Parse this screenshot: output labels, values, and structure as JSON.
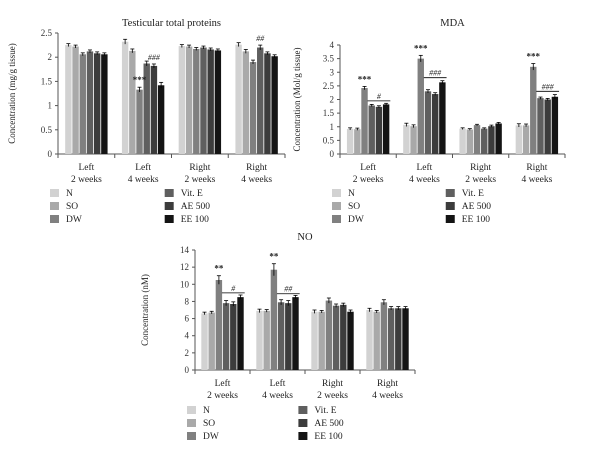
{
  "figure": {
    "series_names": [
      "N",
      "SO",
      "DW",
      "Vit. E",
      "AE 500",
      "EE 100"
    ],
    "colors": {
      "N": "#d2d2d2",
      "SO": "#a9a9a9",
      "DW": "#808080",
      "Vit. E": "#5f5f5f",
      "AE 500": "#3c3c3c",
      "EE 100": "#141414"
    }
  },
  "chart_data": [
    {
      "type": "bar",
      "title": "Testicular total proteins",
      "ylabel": "Concentration (mg/g tissue)",
      "ylim": [
        0,
        2.5
      ],
      "yticks": [
        "0",
        "0.5",
        "1",
        "1.5",
        "2",
        "2.5"
      ],
      "categories": [
        "Left\n2 weeks",
        "Left\n4 weeks",
        "Right\n2 weeks",
        "Right\n4 weeks"
      ],
      "series": [
        {
          "name": "N",
          "values": [
            2.25,
            2.32,
            2.23,
            2.26
          ],
          "errors": [
            0.03,
            0.05,
            0.03,
            0.04
          ]
        },
        {
          "name": "SO",
          "values": [
            2.22,
            2.13,
            2.22,
            2.12
          ],
          "errors": [
            0.03,
            0.04,
            0.03,
            0.04
          ]
        },
        {
          "name": "DW",
          "values": [
            2.06,
            1.33,
            2.17,
            1.9
          ],
          "errors": [
            0.03,
            0.05,
            0.03,
            0.04
          ]
        },
        {
          "name": "Vit. E",
          "values": [
            2.12,
            1.87,
            2.2,
            2.2
          ],
          "errors": [
            0.03,
            0.05,
            0.03,
            0.05
          ]
        },
        {
          "name": "AE 500",
          "values": [
            2.08,
            1.82,
            2.16,
            2.08
          ],
          "errors": [
            0.03,
            0.04,
            0.03,
            0.03
          ]
        },
        {
          "name": "EE 100",
          "values": [
            2.06,
            1.42,
            2.14,
            2.02
          ],
          "errors": [
            0.03,
            0.06,
            0.03,
            0.03
          ]
        }
      ],
      "annotations": [
        {
          "text": "***",
          "category": 1,
          "series": 2
        },
        {
          "text": "###",
          "category": 1,
          "series": 4
        },
        {
          "text": "##",
          "category": 3,
          "series": 3
        }
      ]
    },
    {
      "type": "bar",
      "title": "MDA",
      "ylabel": "Concentration (Mol/g tissue)",
      "ylim": [
        0,
        4
      ],
      "yticks": [
        "0",
        "0.5",
        "1",
        "1.5",
        "2",
        "2.5",
        "3",
        "3.5",
        "4"
      ],
      "categories": [
        "Left\n2 weeks",
        "Left\n4 weeks",
        "Right\n2 weeks",
        "Right\n4 weeks"
      ],
      "series": [
        {
          "name": "N",
          "values": [
            0.92,
            1.07,
            0.93,
            1.05
          ],
          "errors": [
            0.04,
            0.06,
            0.03,
            0.06
          ]
        },
        {
          "name": "SO",
          "values": [
            0.91,
            1.02,
            0.9,
            1.05
          ],
          "errors": [
            0.04,
            0.05,
            0.03,
            0.05
          ]
        },
        {
          "name": "DW",
          "values": [
            2.42,
            3.5,
            1.06,
            3.2
          ],
          "errors": [
            0.06,
            0.12,
            0.03,
            0.12
          ]
        },
        {
          "name": "Vit. E",
          "values": [
            1.78,
            2.3,
            0.93,
            2.05
          ],
          "errors": [
            0.04,
            0.06,
            0.03,
            0.04
          ]
        },
        {
          "name": "AE 500",
          "values": [
            1.73,
            2.2,
            1.02,
            2.0
          ],
          "errors": [
            0.04,
            0.05,
            0.04,
            0.04
          ]
        },
        {
          "name": "EE 100",
          "values": [
            1.82,
            2.63,
            1.12,
            2.1
          ],
          "errors": [
            0.04,
            0.06,
            0.04,
            0.08
          ]
        }
      ],
      "annotations": [
        {
          "text": "***",
          "category": 0,
          "series": 2
        },
        {
          "text": "***",
          "category": 1,
          "series": 2
        },
        {
          "text": "***",
          "category": 3,
          "series": 2
        },
        {
          "text": "#",
          "category": 0,
          "span": [
            3,
            5
          ],
          "value": 1.95
        },
        {
          "text": "###",
          "category": 1,
          "span": [
            3,
            5
          ],
          "value": 2.8
        },
        {
          "text": "###",
          "category": 3,
          "span": [
            3,
            5
          ],
          "value": 2.3
        }
      ]
    },
    {
      "type": "bar",
      "title": "NO",
      "ylabel": "Concentration (nM)",
      "ylim": [
        0,
        14
      ],
      "yticks": [
        "0",
        "2",
        "4",
        "6",
        "8",
        "10",
        "12",
        "14"
      ],
      "categories": [
        "Left\n2 weeks",
        "Left\n4 weeks",
        "Right\n2 weeks",
        "Right\n4 weeks"
      ],
      "series": [
        {
          "name": "N",
          "values": [
            6.6,
            6.9,
            6.8,
            7.0
          ],
          "errors": [
            0.15,
            0.2,
            0.2,
            0.2
          ]
        },
        {
          "name": "SO",
          "values": [
            6.7,
            6.9,
            6.8,
            6.8
          ],
          "errors": [
            0.15,
            0.15,
            0.15,
            0.15
          ]
        },
        {
          "name": "DW",
          "values": [
            10.5,
            11.7,
            8.1,
            7.9
          ],
          "errors": [
            0.5,
            0.7,
            0.3,
            0.3
          ]
        },
        {
          "name": "Vit. E",
          "values": [
            7.8,
            7.9,
            7.5,
            7.2
          ],
          "errors": [
            0.3,
            0.3,
            0.2,
            0.2
          ]
        },
        {
          "name": "AE 500",
          "values": [
            7.7,
            7.8,
            7.6,
            7.2
          ],
          "errors": [
            0.25,
            0.3,
            0.2,
            0.2
          ]
        },
        {
          "name": "EE 100",
          "values": [
            8.5,
            8.5,
            6.8,
            7.2
          ],
          "errors": [
            0.25,
            0.2,
            0.2,
            0.2
          ]
        }
      ],
      "annotations": [
        {
          "text": "**",
          "category": 0,
          "series": 2
        },
        {
          "text": "**",
          "category": 1,
          "series": 2
        },
        {
          "text": "#",
          "category": 0,
          "span": [
            3,
            5
          ],
          "value": 9.0
        },
        {
          "text": "##",
          "category": 1,
          "span": [
            3,
            5
          ],
          "value": 8.9
        }
      ]
    }
  ]
}
